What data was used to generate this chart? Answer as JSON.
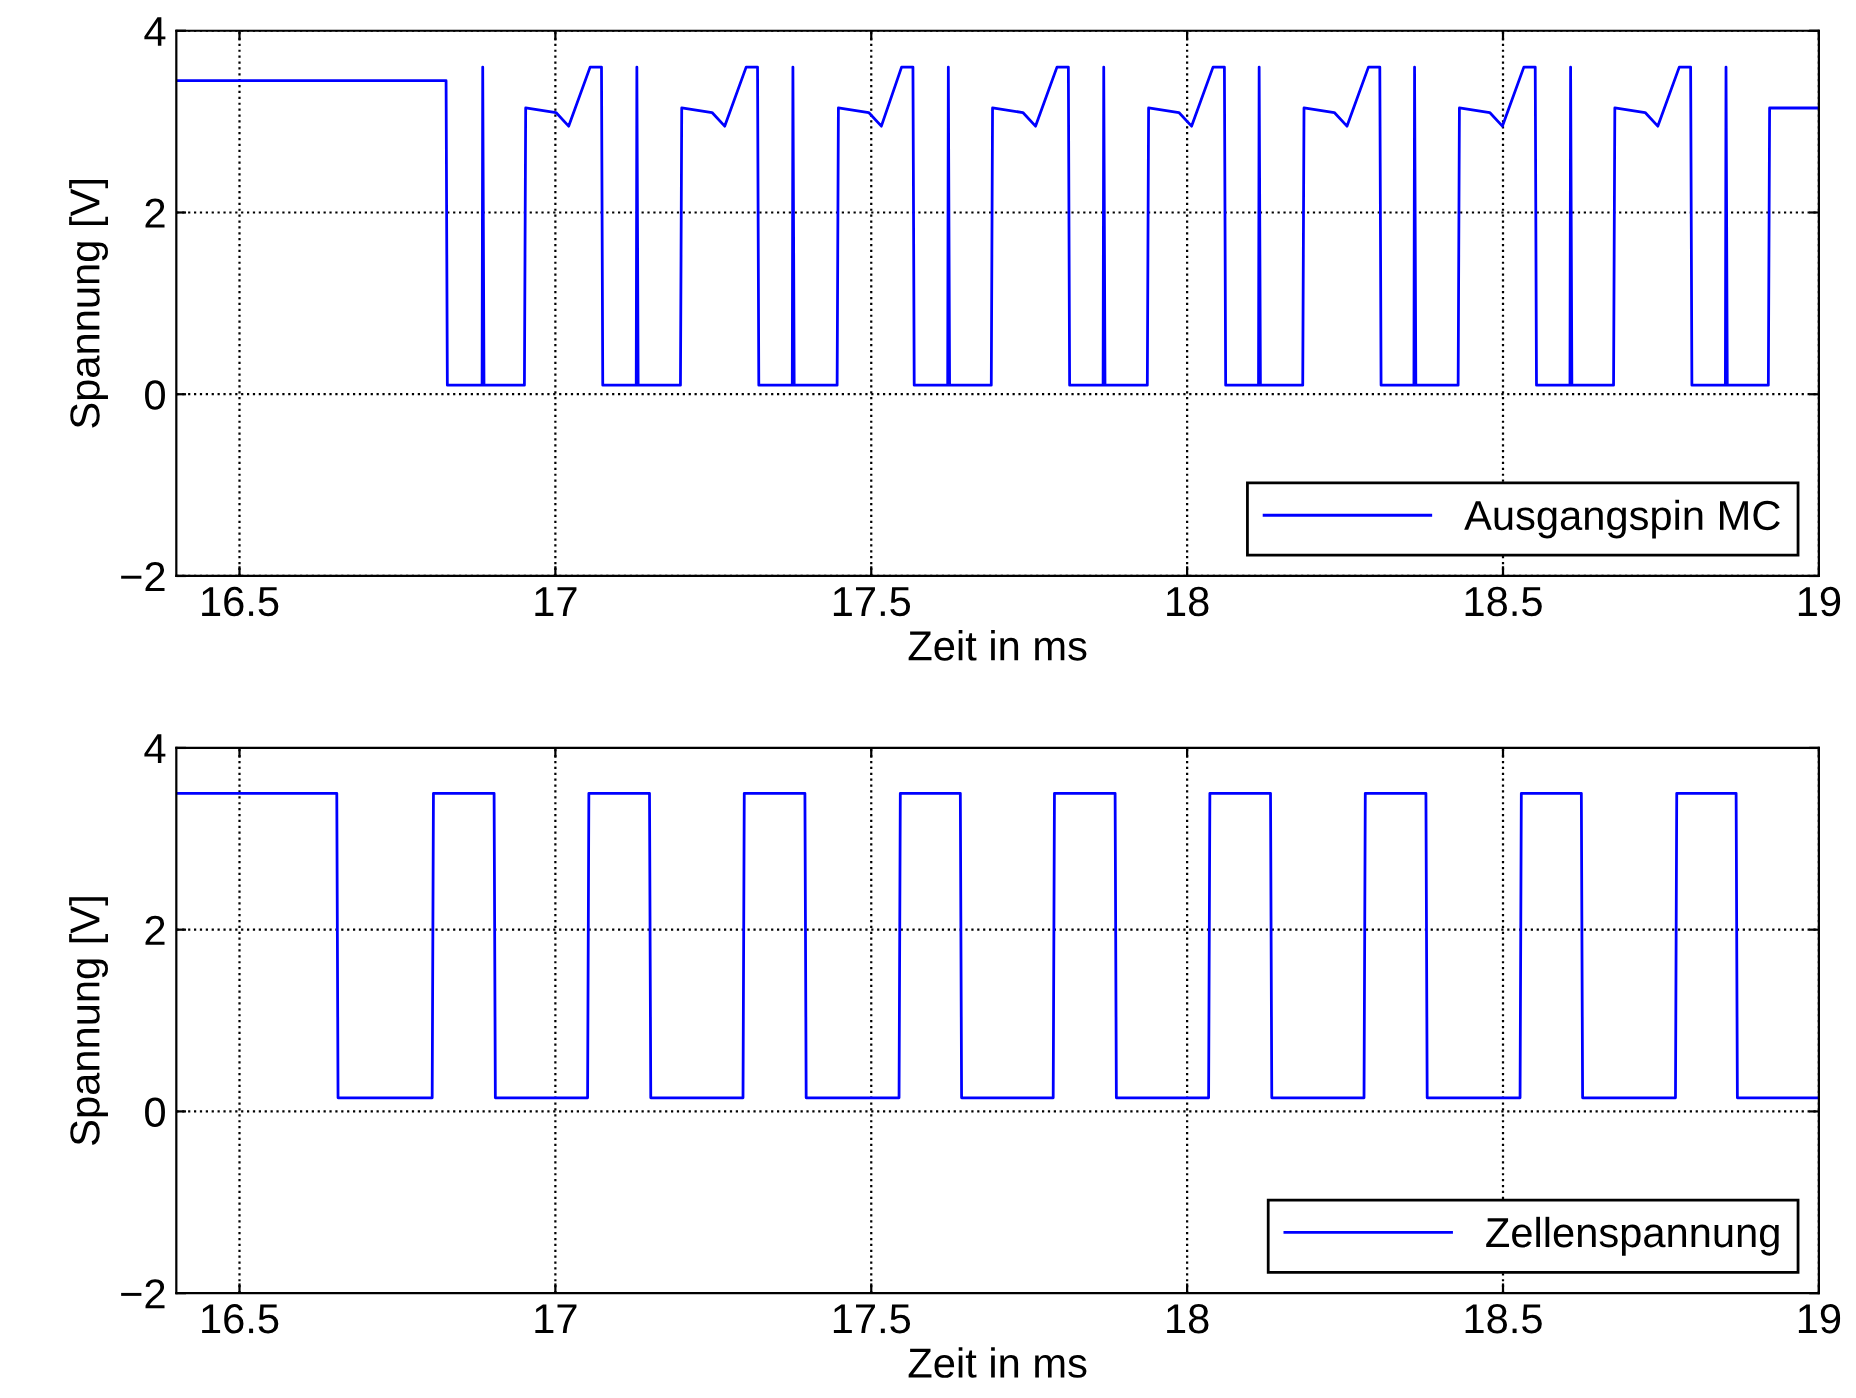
{
  "chart_data": [
    {
      "type": "line",
      "xlabel": "Zeit in ms",
      "ylabel": "Spannung [V]",
      "xlim": [
        16.4,
        19
      ],
      "ylim": [
        -2,
        4
      ],
      "xticks": [
        16.5,
        17,
        17.5,
        18,
        18.5,
        19
      ],
      "yticks": [
        -2,
        0,
        2,
        4
      ],
      "grid": true,
      "legend": "bottom right",
      "line_style": "solid",
      "series": [
        {
          "name": "Ausgangspin MC",
          "color": "#0000ff",
          "x": [
            16.4,
            16.827,
            16.829,
            16.884,
            16.885,
            16.887,
            16.951,
            16.953,
            17.001,
            17.021,
            17.055,
            17.073,
            17.075,
            17.128,
            17.129,
            17.131,
            17.198,
            17.2,
            17.248,
            17.268,
            17.302,
            17.32,
            17.322,
            17.375,
            17.376,
            17.378,
            17.446,
            17.448,
            17.496,
            17.516,
            17.548,
            17.566,
            17.568,
            17.621,
            17.622,
            17.624,
            17.69,
            17.692,
            17.74,
            17.76,
            17.794,
            17.812,
            17.814,
            17.867,
            17.868,
            17.87,
            17.937,
            17.939,
            17.987,
            18.007,
            18.041,
            18.059,
            18.061,
            18.113,
            18.114,
            18.116,
            18.183,
            18.185,
            18.233,
            18.253,
            18.287,
            18.305,
            18.307,
            18.359,
            18.36,
            18.362,
            18.429,
            18.431,
            18.479,
            18.499,
            18.533,
            18.551,
            18.553,
            18.606,
            18.607,
            18.609,
            18.675,
            18.677,
            18.725,
            18.745,
            18.779,
            18.797,
            18.799,
            18.852,
            18.853,
            18.855,
            18.92,
            18.922,
            19
          ],
          "values": [
            3.45,
            3.45,
            0.1,
            0.1,
            3.6,
            0.1,
            0.1,
            3.15,
            3.1,
            2.95,
            3.6,
            3.6,
            0.1,
            0.1,
            3.6,
            0.1,
            0.1,
            3.15,
            3.1,
            2.95,
            3.6,
            3.6,
            0.1,
            0.1,
            3.6,
            0.1,
            0.1,
            3.15,
            3.1,
            2.95,
            3.6,
            3.6,
            0.1,
            0.1,
            3.6,
            0.1,
            0.1,
            3.15,
            3.1,
            2.95,
            3.6,
            3.6,
            0.1,
            0.1,
            3.6,
            0.1,
            0.1,
            3.15,
            3.1,
            2.95,
            3.6,
            3.6,
            0.1,
            0.1,
            3.6,
            0.1,
            0.1,
            3.15,
            3.1,
            2.95,
            3.6,
            3.6,
            0.1,
            0.1,
            3.6,
            0.1,
            0.1,
            3.15,
            3.1,
            2.95,
            3.6,
            3.6,
            0.1,
            0.1,
            3.6,
            0.1,
            0.1,
            3.15,
            3.1,
            2.95,
            3.6,
            3.6,
            0.1,
            0.1,
            3.6,
            0.1,
            0.1,
            3.15,
            3.15
          ]
        }
      ]
    },
    {
      "type": "line",
      "xlabel": "Zeit in ms",
      "ylabel": "Spannung [V]",
      "xlim": [
        16.4,
        19
      ],
      "ylim": [
        -2,
        4
      ],
      "xticks": [
        16.5,
        17,
        17.5,
        18,
        18.5,
        19
      ],
      "yticks": [
        -2,
        0,
        2,
        4
      ],
      "grid": true,
      "legend": "bottom right",
      "line_style": "solid",
      "series": [
        {
          "name": "Zellenspannung",
          "color": "#0000ff",
          "x": [
            16.4,
            16.654,
            16.656,
            16.805,
            16.807,
            16.903,
            16.905,
            17.051,
            17.053,
            17.149,
            17.151,
            17.297,
            17.299,
            17.395,
            17.397,
            17.544,
            17.546,
            17.641,
            17.643,
            17.788,
            17.79,
            17.886,
            17.888,
            18.034,
            18.036,
            18.132,
            18.134,
            18.28,
            18.282,
            18.378,
            18.38,
            18.527,
            18.529,
            18.624,
            18.626,
            18.773,
            18.775,
            18.869,
            18.871,
            19
          ],
          "values": [
            3.5,
            3.5,
            0.15,
            0.15,
            3.5,
            3.5,
            0.15,
            0.15,
            3.5,
            3.5,
            0.15,
            0.15,
            3.5,
            3.5,
            0.15,
            0.15,
            3.5,
            3.5,
            0.15,
            0.15,
            3.5,
            3.5,
            0.15,
            0.15,
            3.5,
            3.5,
            0.15,
            0.15,
            3.5,
            3.5,
            0.15,
            0.15,
            3.5,
            3.5,
            0.15,
            0.15,
            3.5,
            3.5,
            0.15,
            0.15
          ]
        }
      ]
    }
  ]
}
